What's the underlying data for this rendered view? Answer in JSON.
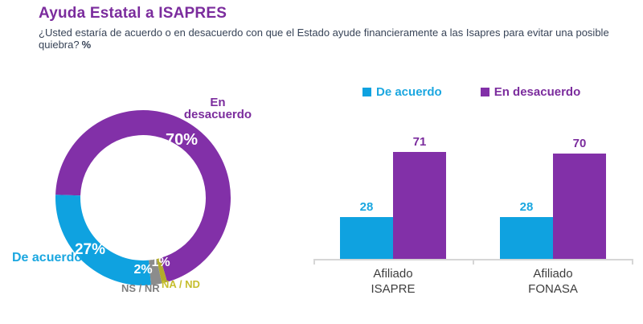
{
  "page": {
    "title": "Ayuda Estatal a ISAPRES",
    "subtitle": "¿Usted estaría de acuerdo o en desacuerdo con que el Estado ayude financieramente a las Isapres para evitar una posible quiebra?",
    "subtitle_suffix": "%"
  },
  "colors": {
    "background": "#FFFFFF",
    "purple_fill": "#8230A8",
    "purple_text": "#7B2C9D",
    "cyan_fill": "#0FA2E0",
    "cyan_text": "#1BA7E0",
    "gray_fill": "#8C8C8C",
    "gray_text": "#7F7F7F",
    "yellow_fill": "#B3AC2B",
    "yellow_text": "#C6BE2E",
    "subtitle_text": "#374357",
    "category_text": "#3D3D3D",
    "axis_line": "#D6D6D6"
  },
  "chart_data": [
    {
      "type": "pie",
      "subtype": "donut",
      "start_angle_deg": -88,
      "direction": "clockwise",
      "segments": [
        {
          "label": "En desacuerdo",
          "label_lines": [
            "En",
            "desacuerdo"
          ],
          "value": 70,
          "pct_label": "70%",
          "color": "#8230A8"
        },
        {
          "label": "NA / ND",
          "value": 1,
          "pct_label": "1%",
          "color": "#B3AC2B"
        },
        {
          "label": "NS / NR",
          "value": 2,
          "pct_label": "2%",
          "color": "#8C8C8C"
        },
        {
          "label": "De acuerdo",
          "value": 27,
          "pct_label": "27%",
          "color": "#0FA2E0"
        }
      ]
    },
    {
      "type": "bar",
      "categories": [
        "Afiliado ISAPRE",
        "Afiliado FONASA"
      ],
      "category_lines": [
        [
          "Afiliado",
          "ISAPRE"
        ],
        [
          "Afiliado",
          "FONASA"
        ]
      ],
      "series": [
        {
          "name": "De acuerdo",
          "color": "#0FA2E0",
          "values": [
            28,
            28
          ]
        },
        {
          "name": "En desacuerdo",
          "color": "#8230A8",
          "values": [
            71,
            70
          ]
        }
      ],
      "value_labels": true,
      "legend_position": "top",
      "grid": false
    }
  ]
}
